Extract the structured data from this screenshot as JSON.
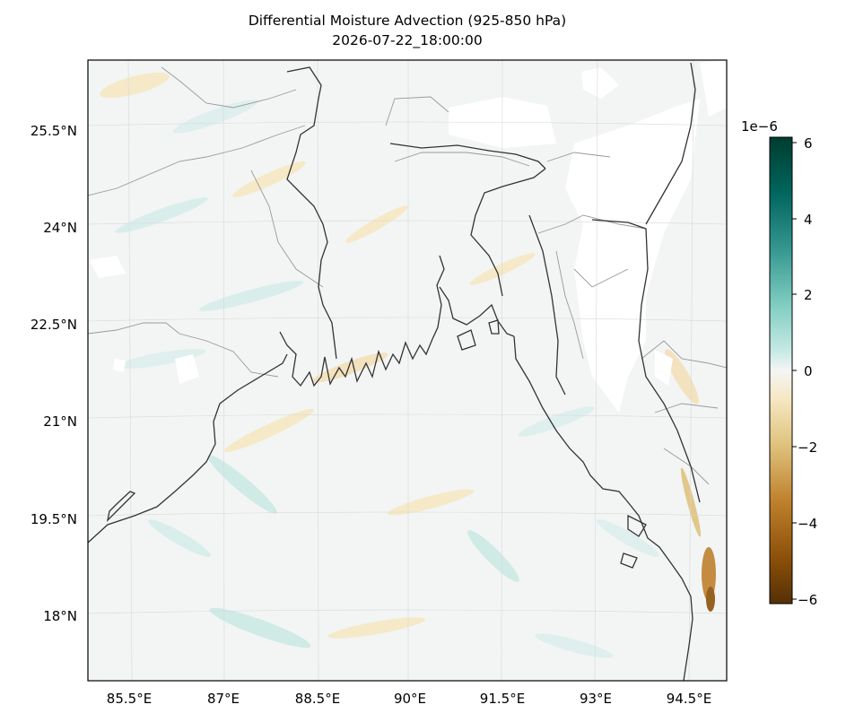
{
  "title": "Differential Moisture Advection (925-850 hPa)",
  "subtitle": "2026-07-22_18:00:00",
  "map": {
    "lat_labels": [
      "25.5°N",
      "24°N",
      "22.5°N",
      "21°N",
      "19.5°N",
      "18°N"
    ],
    "lon_labels": [
      "85.5°E",
      "87°E",
      "88.5°E",
      "90°E",
      "91.5°E",
      "93°E",
      "94.5°E"
    ]
  },
  "colorbar": {
    "scale_label": "1e−6",
    "tick_labels": [
      "6",
      "4",
      "2",
      "0",
      "−2",
      "−4",
      "−6"
    ],
    "colormap": "BrBG",
    "vmin": -6,
    "vmax": 6
  }
}
